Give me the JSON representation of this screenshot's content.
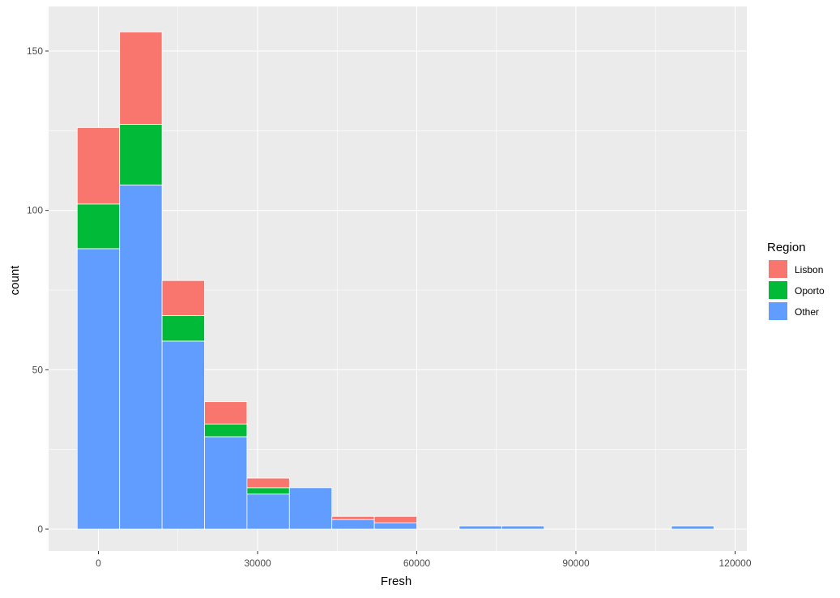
{
  "chart_data": {
    "type": "bar",
    "stacked": true,
    "xlabel": "Fresh",
    "ylabel": "count",
    "xlim": [
      -8000,
      120500
    ],
    "ylim": [
      -7,
      163
    ],
    "xticks": [
      0,
      30000,
      60000,
      90000,
      120000
    ],
    "xtick_labels": [
      "0",
      "30000",
      "60000",
      "90000",
      "120000"
    ],
    "yticks": [
      0,
      50,
      100,
      150
    ],
    "ytick_labels": [
      "0",
      "50",
      "100",
      "150"
    ],
    "grid": true,
    "legend": {
      "title": "Region",
      "placement": "right",
      "items": [
        {
          "label": "Lisbon",
          "color": "#F8766D"
        },
        {
          "label": "Oporto",
          "color": "#00BA38"
        },
        {
          "label": "Other",
          "color": "#619CFF"
        }
      ]
    },
    "bins": [
      {
        "x_start": -4000,
        "x_end": 4000
      },
      {
        "x_start": 4000,
        "x_end": 12000
      },
      {
        "x_start": 12000,
        "x_end": 20000
      },
      {
        "x_start": 20000,
        "x_end": 28000
      },
      {
        "x_start": 28000,
        "x_end": 36000
      },
      {
        "x_start": 36000,
        "x_end": 44000
      },
      {
        "x_start": 44000,
        "x_end": 52000
      },
      {
        "x_start": 52000,
        "x_end": 60000
      },
      {
        "x_start": 60000,
        "x_end": 68000
      },
      {
        "x_start": 68000,
        "x_end": 76000
      },
      {
        "x_start": 76000,
        "x_end": 84000
      },
      {
        "x_start": 84000,
        "x_end": 92000
      },
      {
        "x_start": 92000,
        "x_end": 100000
      },
      {
        "x_start": 100000,
        "x_end": 108000
      },
      {
        "x_start": 108000,
        "x_end": 116000
      }
    ],
    "series": [
      {
        "name": "Other",
        "color": "#619CFF",
        "values": [
          88,
          108,
          59,
          29,
          11,
          13,
          3,
          2,
          0,
          1,
          1,
          0,
          0,
          0,
          1
        ]
      },
      {
        "name": "Oporto",
        "color": "#00BA38",
        "values": [
          14,
          19,
          8,
          4,
          2,
          0,
          0,
          0,
          0,
          0,
          0,
          0,
          0,
          0,
          0
        ]
      },
      {
        "name": "Lisbon",
        "color": "#F8766D",
        "values": [
          24,
          29,
          11,
          7,
          3,
          0,
          1,
          2,
          0,
          0,
          0,
          0,
          0,
          0,
          0
        ]
      }
    ],
    "panel_background": "#EBEBEB",
    "grid_color": "#FFFFFF",
    "bar_outline": "#FFFFFF"
  }
}
